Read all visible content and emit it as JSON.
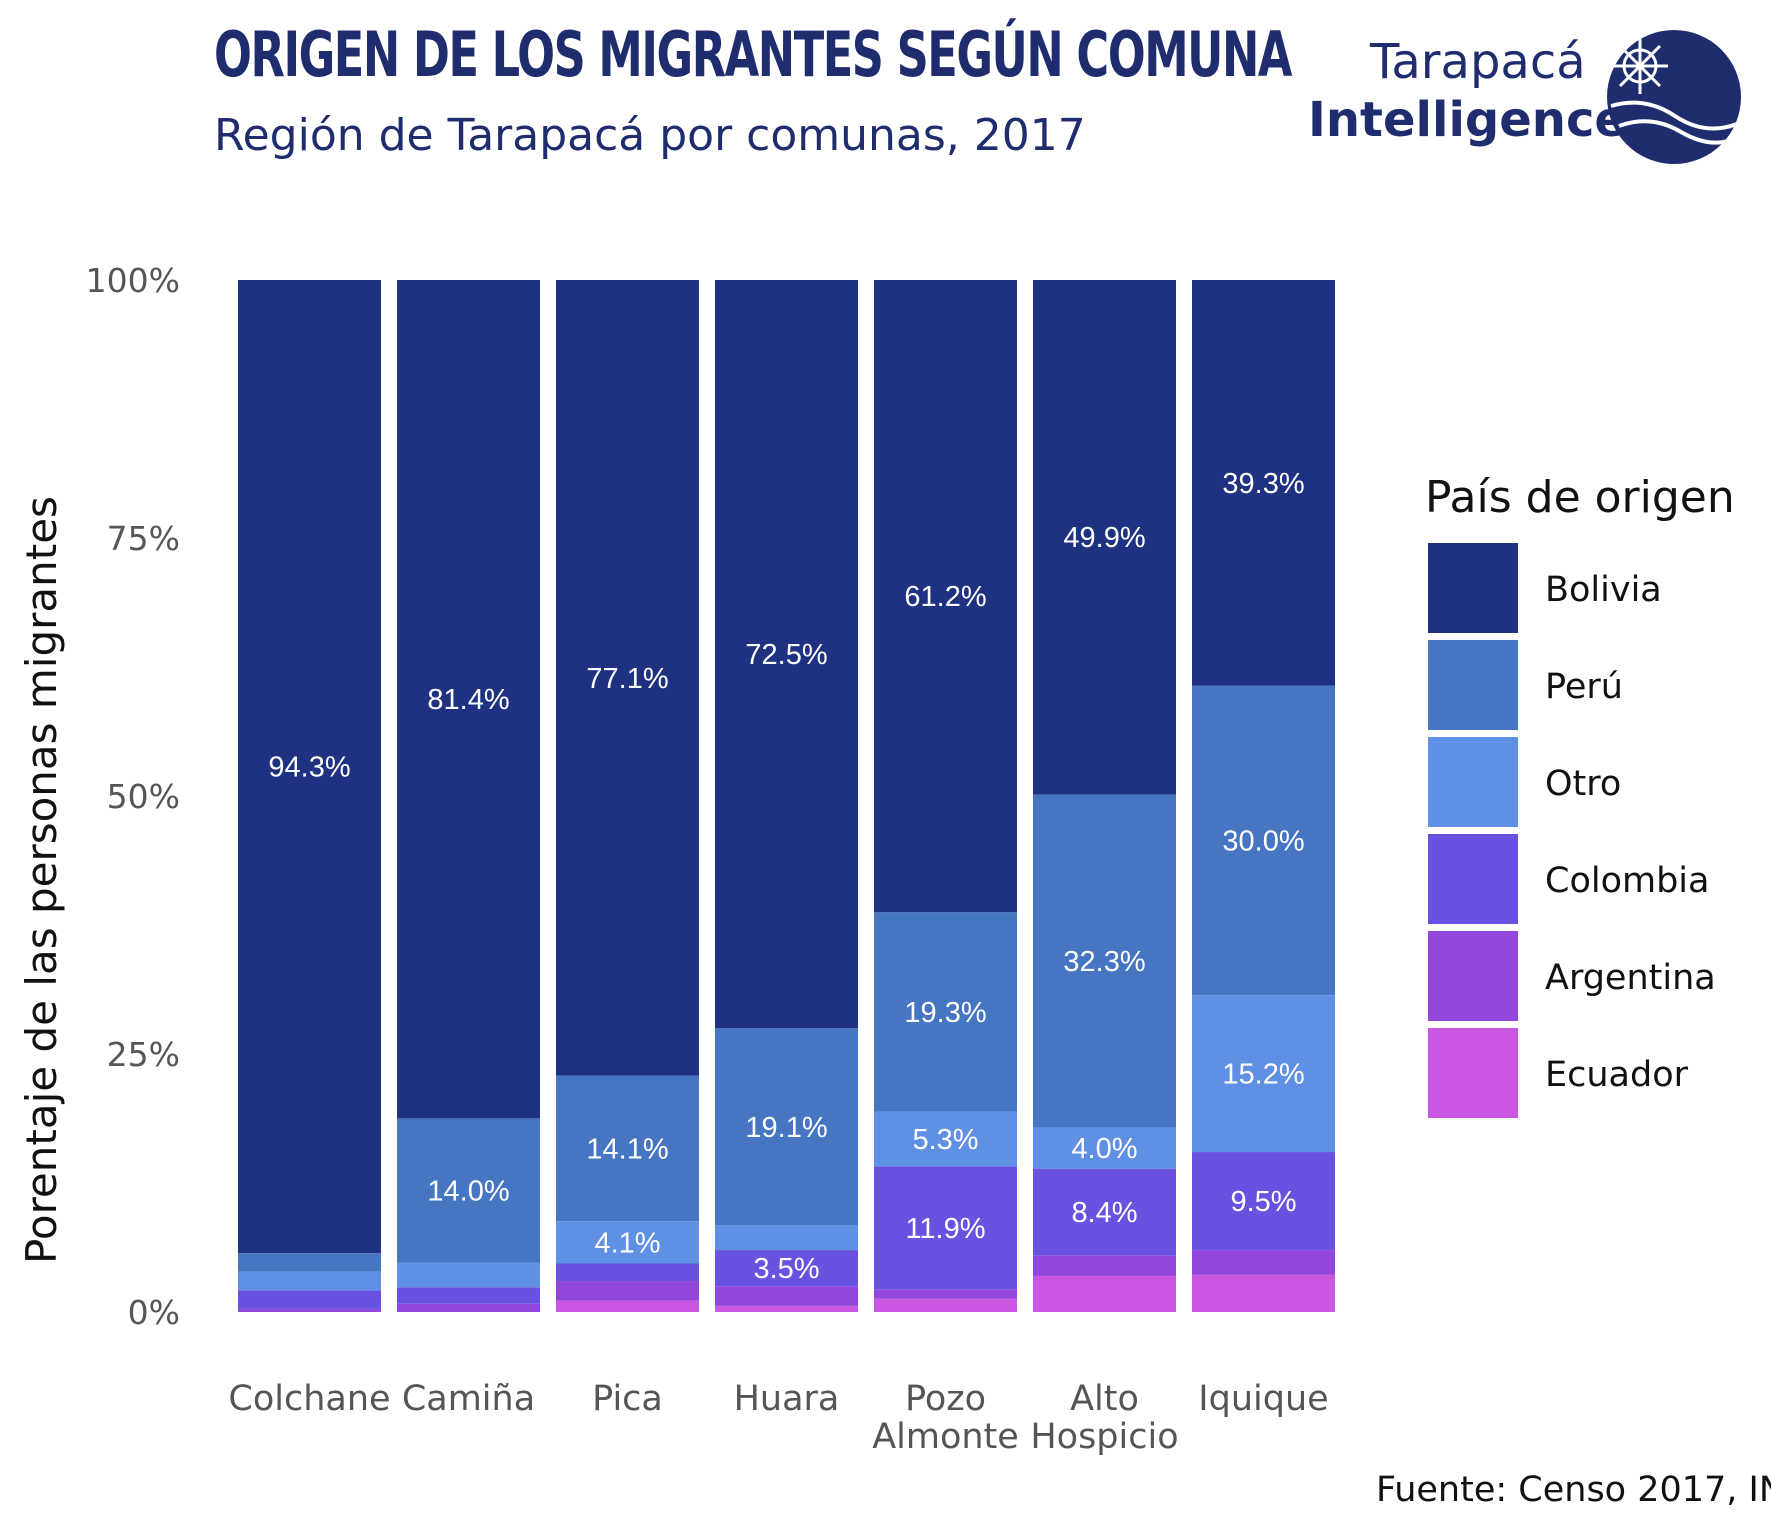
{
  "header": {
    "title": "ORIGEN DE LOS MIGRANTES SEGÚN COMUNA",
    "subtitle": "Región de Tarapacá por comunas, 2017"
  },
  "logo": {
    "line1": "Tarapacá",
    "line2": "Intelligence"
  },
  "source": "Fuente: Censo 2017, IN",
  "colors": {
    "Bolivia": "#1f3282",
    "Perú": "#4676c2",
    "Otro": "#6090e3",
    "Colombia": "#6a52e0",
    "Argentina": "#9146dc",
    "Ecuador": "#c957e2"
  },
  "chart_data": {
    "type": "bar",
    "stacked": true,
    "title": "ORIGEN DE LOS MIGRANTES SEGÚN COMUNA",
    "subtitle": "Región de Tarapacá por comunas, 2017",
    "xlabel": "",
    "ylabel": "Porentaje de las personas migrantes",
    "ylim": [
      0,
      100
    ],
    "yticks": [
      "0%",
      "25%",
      "50%",
      "75%",
      "100%"
    ],
    "categories": [
      [
        "Colchane"
      ],
      [
        "Camiña"
      ],
      [
        "Pica"
      ],
      [
        "Huara"
      ],
      [
        "Pozo",
        "Almonte"
      ],
      [
        "Alto",
        "Hospicio"
      ],
      [
        "Iquique"
      ]
    ],
    "legend_title": "País de origen",
    "legend_position": "right",
    "series": [
      {
        "name": "Ecuador",
        "values": [
          0.0,
          0.0,
          1.1,
          0.6,
          1.3,
          3.5,
          3.6
        ],
        "labels": [
          "",
          "",
          "",
          "",
          "",
          "",
          ""
        ]
      },
      {
        "name": "Argentina",
        "values": [
          0.3,
          0.8,
          1.9,
          1.9,
          0.9,
          2.0,
          2.4
        ],
        "labels": [
          "",
          "",
          "",
          "",
          "",
          "",
          ""
        ]
      },
      {
        "name": "Colombia",
        "values": [
          1.8,
          1.6,
          1.7,
          3.5,
          11.9,
          8.4,
          9.5
        ],
        "labels": [
          "",
          "",
          "",
          "3.5%",
          "11.9%",
          "8.4%",
          "9.5%"
        ]
      },
      {
        "name": "Otro",
        "values": [
          1.8,
          2.4,
          4.1,
          2.4,
          5.3,
          4.0,
          15.2
        ],
        "labels": [
          "",
          "",
          "4.1%",
          "",
          "5.3%",
          "4.0%",
          "15.2%"
        ]
      },
      {
        "name": "Perú",
        "values": [
          1.8,
          14.0,
          14.1,
          19.1,
          19.3,
          32.3,
          30.0
        ],
        "labels": [
          "",
          "14.0%",
          "14.1%",
          "19.1%",
          "19.3%",
          "32.3%",
          "30.0%"
        ]
      },
      {
        "name": "Bolivia",
        "values": [
          94.3,
          81.4,
          77.1,
          72.5,
          61.2,
          49.9,
          39.3
        ],
        "labels": [
          "94.3%",
          "81.4%",
          "77.1%",
          "72.5%",
          "61.2%",
          "49.9%",
          "39.3%"
        ]
      }
    ],
    "legend_order": [
      "Bolivia",
      "Perú",
      "Otro",
      "Colombia",
      "Argentina",
      "Ecuador"
    ]
  }
}
